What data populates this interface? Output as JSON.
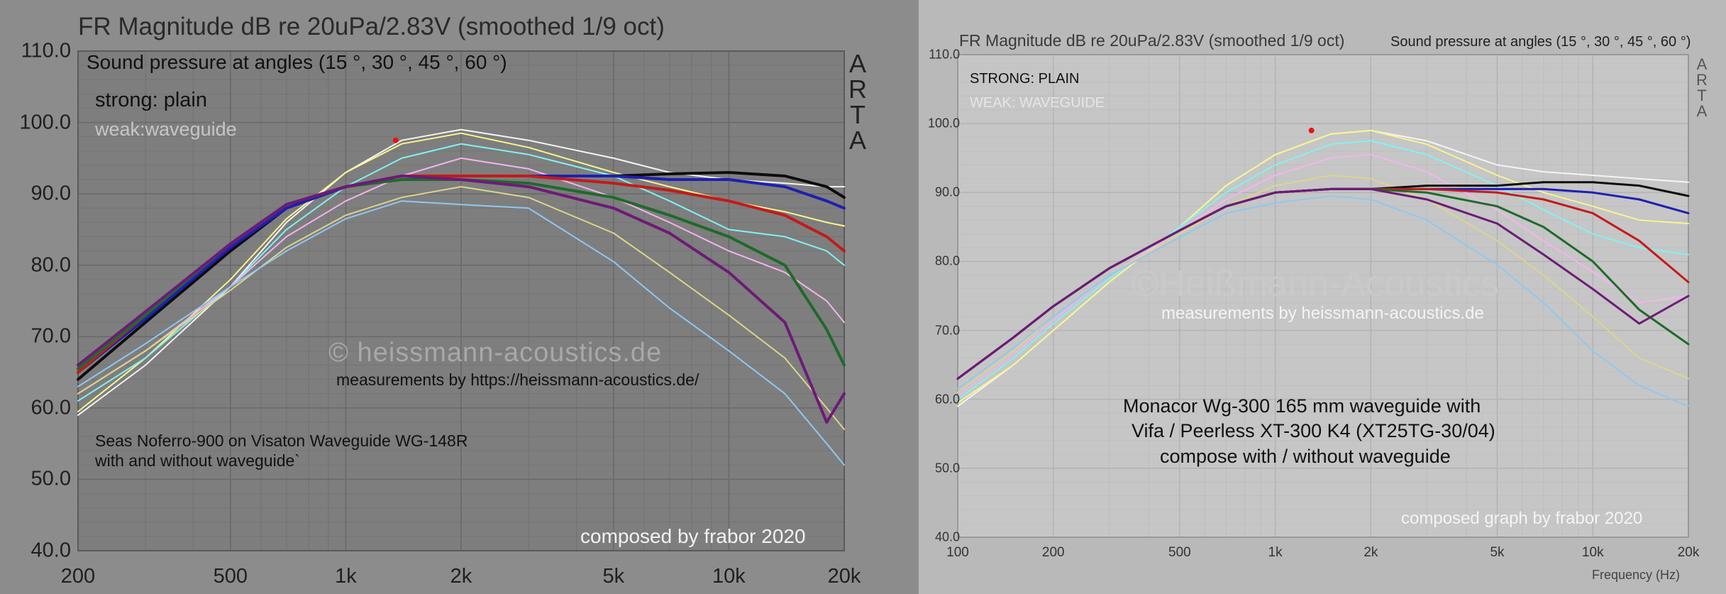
{
  "colors": {
    "white": "#f4f4f4",
    "yellow": "#f7f58f",
    "cyan": "#83f1f1",
    "pink": "#f4b3ec",
    "pale_yellow": "#dcd58c",
    "light_blue": "#8fc8f2",
    "black": "#0d0d0d",
    "blue": "#1f1fb3",
    "red": "#c41a1a",
    "green": "#1f6a2a",
    "purple": "#6e1a78",
    "marker": "#ee1111"
  },
  "chart_data": [
    {
      "type": "line",
      "title": "FR Magnitude dB re 20uPa/2.83V (smoothed 1/9 oct)",
      "brand": [
        "A",
        "R",
        "T",
        "A"
      ],
      "xlabel": "",
      "ylabel": "",
      "xscale": "log",
      "xlim": [
        200,
        20000
      ],
      "ylim": [
        40,
        110
      ],
      "x_ticks": [
        200,
        500,
        1000,
        2000,
        5000,
        10000,
        20000
      ],
      "x_tick_labels": [
        "200",
        "500",
        "1k",
        "2k",
        "5k",
        "10k",
        "20k"
      ],
      "y_ticks": [
        40,
        50,
        60,
        70,
        80,
        90,
        100,
        110
      ],
      "y_tick_labels": [
        "40.0",
        "50.0",
        "60.0",
        "70.0",
        "80.0",
        "90.0",
        "100.0",
        "110.0"
      ],
      "grid": true,
      "marker_point": [
        1350,
        97.5
      ],
      "annotations": [
        "Sound pressure at angles (15 °, 30 °, 45 °, 60 °)",
        "strong: plain",
        "weak:waveguide",
        "© heissmann-acoustics.de",
        "measurements by https://heissmann-acoustics.de/",
        "Seas Noferro-900 on Visaton Waveguide WG-148R",
        "with and without waveguide`",
        "composed by frabor 2020"
      ],
      "series": [
        {
          "color": "white",
          "width": 2,
          "x": [
            200,
            300,
            500,
            700,
            1000,
            1400,
            2000,
            3000,
            5000,
            7000,
            10000,
            14000,
            18000,
            20000
          ],
          "y": [
            59,
            66,
            77,
            86,
            93,
            97.5,
            99,
            97.5,
            95,
            93,
            92,
            91.5,
            91,
            91
          ]
        },
        {
          "color": "yellow",
          "width": 2,
          "x": [
            200,
            300,
            500,
            700,
            1000,
            1400,
            2000,
            3000,
            5000,
            7000,
            10000,
            14000,
            18000,
            20000
          ],
          "y": [
            59.5,
            67,
            78,
            86.5,
            93,
            97,
            98.5,
            96.5,
            93,
            91,
            89,
            87.5,
            86,
            85.5
          ]
        },
        {
          "color": "cyan",
          "width": 2,
          "x": [
            200,
            300,
            500,
            700,
            1000,
            1400,
            2000,
            3000,
            5000,
            7000,
            10000,
            14000,
            18000,
            20000
          ],
          "y": [
            61,
            67,
            77,
            85,
            91,
            95,
            97,
            95.5,
            92.5,
            89,
            85,
            84,
            82,
            80
          ]
        },
        {
          "color": "pink",
          "width": 2,
          "x": [
            200,
            300,
            500,
            700,
            1000,
            1400,
            2000,
            3000,
            5000,
            7000,
            10000,
            14000,
            18000,
            20000
          ],
          "y": [
            62,
            68,
            77,
            84,
            89,
            92.5,
            95,
            93.5,
            89.5,
            86,
            82,
            79,
            75,
            72
          ]
        },
        {
          "color": "pale_yellow",
          "width": 2,
          "x": [
            200,
            300,
            500,
            700,
            1000,
            1400,
            2000,
            3000,
            5000,
            7000,
            10000,
            14000,
            18000,
            20000
          ],
          "y": [
            62,
            68,
            76.5,
            82.5,
            87,
            89.5,
            91,
            89.5,
            84.5,
            79,
            73,
            67,
            60,
            57
          ]
        },
        {
          "color": "light_blue",
          "width": 2,
          "x": [
            200,
            300,
            500,
            700,
            1000,
            1400,
            2000,
            3000,
            5000,
            7000,
            10000,
            14000,
            18000,
            20000
          ],
          "y": [
            63,
            69,
            77,
            82,
            86.5,
            89,
            88.5,
            88,
            80.5,
            74,
            68,
            62,
            55,
            52
          ]
        },
        {
          "color": "black",
          "width": 4,
          "x": [
            200,
            300,
            500,
            700,
            1000,
            1400,
            2000,
            3000,
            5000,
            7000,
            10000,
            14000,
            18000,
            20000
          ],
          "y": [
            64,
            72,
            82,
            88,
            91,
            92.5,
            92.5,
            92.5,
            92.5,
            92.8,
            93,
            92.5,
            91,
            89.5
          ]
        },
        {
          "color": "blue",
          "width": 4,
          "x": [
            200,
            300,
            500,
            700,
            1000,
            1400,
            2000,
            3000,
            5000,
            7000,
            10000,
            14000,
            18000,
            20000
          ],
          "y": [
            65,
            72.5,
            82.5,
            88,
            91,
            92.5,
            92.5,
            92.5,
            92.5,
            92,
            92,
            91,
            89,
            88
          ]
        },
        {
          "color": "red",
          "width": 4,
          "x": [
            200,
            300,
            500,
            700,
            1000,
            1400,
            2000,
            3000,
            5000,
            7000,
            10000,
            14000,
            18000,
            20000
          ],
          "y": [
            65,
            73,
            83,
            88.5,
            91,
            92.5,
            92.5,
            92.5,
            91.5,
            90.5,
            89,
            87,
            84,
            82
          ]
        },
        {
          "color": "green",
          "width": 4,
          "x": [
            200,
            300,
            500,
            700,
            1000,
            1400,
            2000,
            3000,
            5000,
            7000,
            10000,
            14000,
            18000,
            20000
          ],
          "y": [
            65.5,
            73,
            83,
            88.5,
            91,
            92,
            92,
            91.5,
            89.5,
            87,
            84,
            80,
            71,
            66
          ]
        },
        {
          "color": "purple",
          "width": 4,
          "x": [
            200,
            300,
            500,
            700,
            1000,
            1400,
            2000,
            3000,
            5000,
            7000,
            10000,
            14000,
            18000,
            20000
          ],
          "y": [
            66,
            73.5,
            83,
            88.5,
            91,
            92.5,
            92,
            91,
            88,
            84.5,
            79,
            72,
            58,
            62
          ]
        }
      ]
    },
    {
      "type": "line",
      "title": "FR Magnitude dB re 20uPa/2.83V (smoothed 1/9 oct)",
      "subtitle": "Sound pressure at angles (15 °, 30 °, 45 °, 60 °)",
      "brand": [
        "A",
        "R",
        "T",
        "A"
      ],
      "xlabel": "Frequency (Hz)",
      "ylabel": "",
      "xscale": "log",
      "xlim": [
        100,
        20000
      ],
      "ylim": [
        40,
        110
      ],
      "x_ticks": [
        100,
        200,
        500,
        1000,
        2000,
        5000,
        10000,
        20000
      ],
      "x_tick_labels": [
        "100",
        "200",
        "500",
        "1k",
        "2k",
        "5k",
        "10k",
        "20k"
      ],
      "y_ticks": [
        40,
        50,
        60,
        70,
        80,
        90,
        100,
        110
      ],
      "y_tick_labels": [
        "40.0",
        "50.0",
        "60.0",
        "70.0",
        "80.0",
        "90.0",
        "100.0",
        "110.0"
      ],
      "grid": true,
      "marker_point": [
        1300,
        99
      ],
      "annotations": [
        "STRONG: PLAIN",
        "WEAK: WAVEGUIDE",
        "©Heißmann-Acoustics",
        "measurements by heissmann-acoustics.de",
        "Monacor Wg-300 165 mm waveguide with",
        "Vifa / Peerless XT-300 K4 (XT25TG-30/04)",
        "compose with / without waveguide",
        "composed graph by frabor 2020"
      ],
      "series": [
        {
          "color": "white",
          "width": 2,
          "x": [
            100,
            150,
            200,
            300,
            500,
            700,
            1000,
            1500,
            2000,
            3000,
            5000,
            7000,
            10000,
            14000,
            20000
          ],
          "y": [
            59,
            65,
            70,
            77,
            85,
            91,
            95.5,
            98.5,
            99,
            97.5,
            94,
            93,
            92.5,
            92,
            91.5
          ]
        },
        {
          "color": "yellow",
          "width": 2,
          "x": [
            100,
            150,
            200,
            300,
            500,
            700,
            1000,
            1500,
            2000,
            3000,
            5000,
            7000,
            10000,
            14000,
            20000
          ],
          "y": [
            59.5,
            65,
            70,
            77,
            85,
            91,
            95.5,
            98.5,
            99,
            97,
            92.5,
            90,
            88,
            86,
            85.5
          ]
        },
        {
          "color": "cyan",
          "width": 2,
          "x": [
            100,
            150,
            200,
            300,
            500,
            700,
            1000,
            1500,
            2000,
            3000,
            5000,
            7000,
            10000,
            14000,
            20000
          ],
          "y": [
            60,
            66,
            71,
            77.5,
            85,
            90,
            94,
            97,
            97.5,
            95.5,
            91,
            87.5,
            84,
            82,
            81
          ]
        },
        {
          "color": "pink",
          "width": 2,
          "x": [
            100,
            150,
            200,
            300,
            500,
            700,
            1000,
            1500,
            2000,
            3000,
            5000,
            7000,
            10000,
            14000,
            20000
          ],
          "y": [
            60.5,
            66.5,
            71.5,
            78,
            84.5,
            89,
            92.5,
            95,
            95.5,
            93,
            87.5,
            83,
            78.5,
            74,
            75
          ]
        },
        {
          "color": "pale_yellow",
          "width": 2,
          "x": [
            100,
            150,
            200,
            300,
            500,
            700,
            1000,
            1500,
            2000,
            3000,
            5000,
            7000,
            10000,
            14000,
            20000
          ],
          "y": [
            61,
            67,
            72,
            78,
            84,
            88,
            91,
            92.5,
            92,
            89,
            83,
            78,
            72,
            66,
            63
          ]
        },
        {
          "color": "light_blue",
          "width": 2,
          "x": [
            100,
            150,
            200,
            300,
            500,
            700,
            1000,
            1500,
            2000,
            3000,
            5000,
            7000,
            10000,
            14000,
            20000
          ],
          "y": [
            61.5,
            67.5,
            72,
            78,
            83.5,
            87,
            88.5,
            89.5,
            89,
            86,
            79.5,
            74,
            67,
            62,
            59
          ]
        },
        {
          "color": "black",
          "width": 3,
          "x": [
            100,
            150,
            200,
            300,
            500,
            700,
            1000,
            1500,
            2000,
            3000,
            5000,
            7000,
            10000,
            14000,
            20000
          ],
          "y": [
            63,
            69,
            73.5,
            79,
            84.5,
            88,
            90,
            90.5,
            90.5,
            91,
            91,
            91.5,
            91.5,
            91,
            89.5
          ]
        },
        {
          "color": "blue",
          "width": 3,
          "x": [
            100,
            150,
            200,
            300,
            500,
            700,
            1000,
            1500,
            2000,
            3000,
            5000,
            7000,
            10000,
            14000,
            20000
          ],
          "y": [
            63,
            69,
            73.5,
            79,
            84.5,
            88,
            90,
            90.5,
            90.5,
            90.5,
            90.5,
            90.5,
            90,
            89,
            87
          ]
        },
        {
          "color": "red",
          "width": 3,
          "x": [
            100,
            150,
            200,
            300,
            500,
            700,
            1000,
            1500,
            2000,
            3000,
            5000,
            7000,
            10000,
            14000,
            20000
          ],
          "y": [
            63,
            69,
            73.5,
            79,
            84.5,
            88,
            90,
            90.5,
            90.5,
            90.5,
            90,
            89,
            87,
            83,
            77
          ]
        },
        {
          "color": "green",
          "width": 3,
          "x": [
            100,
            150,
            200,
            300,
            500,
            700,
            1000,
            1500,
            2000,
            3000,
            5000,
            7000,
            10000,
            14000,
            20000
          ],
          "y": [
            63,
            69,
            73.5,
            79,
            84.5,
            88,
            90,
            90.5,
            90.5,
            90,
            88,
            85,
            80,
            73,
            68
          ]
        },
        {
          "color": "purple",
          "width": 3,
          "x": [
            100,
            150,
            200,
            300,
            500,
            700,
            1000,
            1500,
            2000,
            3000,
            5000,
            7000,
            10000,
            14000,
            20000
          ],
          "y": [
            63,
            69,
            73.5,
            79,
            84.5,
            88,
            90,
            90.5,
            90.5,
            89,
            85.5,
            81,
            76,
            71,
            75
          ]
        }
      ]
    }
  ]
}
